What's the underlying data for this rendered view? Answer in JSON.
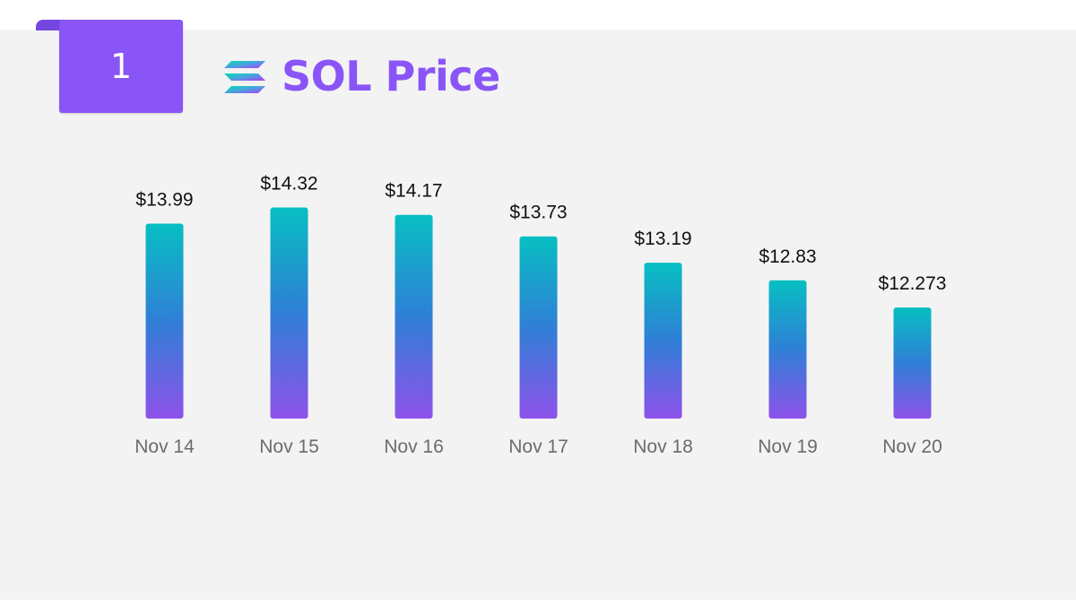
{
  "slide": {
    "number": "1"
  },
  "header": {
    "title": "SOL Price",
    "logo_icon": "solana-logo-icon"
  },
  "colors": {
    "accent": "#8a55f7",
    "bar_top": "#07bfc2",
    "bar_mid": "#2f7fd6",
    "bar_bottom": "#8e52ea",
    "panel_bg": "#f3f3f3"
  },
  "chart_data": {
    "type": "bar",
    "title": "SOL Price",
    "categories": [
      "Nov 14",
      "Nov 15",
      "Nov 16",
      "Nov 17",
      "Nov 18",
      "Nov 19",
      "Nov 20"
    ],
    "values": [
      13.99,
      14.32,
      14.17,
      13.73,
      13.19,
      12.83,
      12.273
    ],
    "value_labels": [
      "$13.99",
      "$14.32",
      "$14.17",
      "$13.73",
      "$13.19",
      "$12.83",
      "$12.273"
    ],
    "grid": false,
    "legend": "none"
  }
}
